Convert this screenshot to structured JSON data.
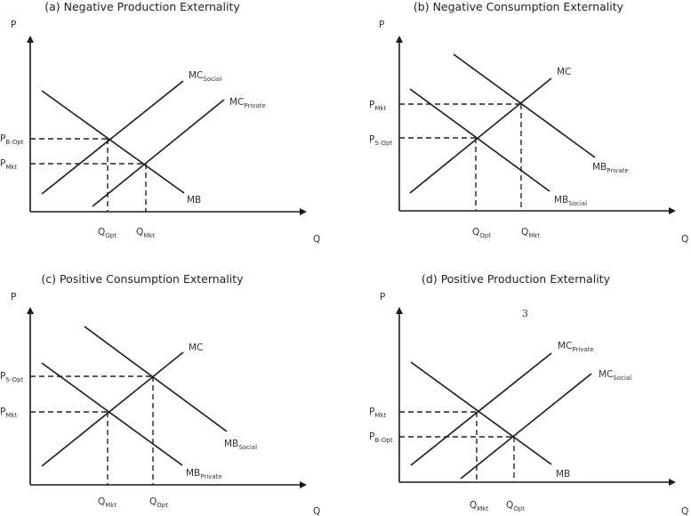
{
  "panels": [
    {
      "title": "(a) Negative Production Externality",
      "axis_p": "P",
      "axis_q": "Q",
      "curves": [
        {
          "main": "MC",
          "sub": "Social"
        },
        {
          "main": "MC",
          "sub": "Private"
        },
        {
          "main": "MB",
          "sub": ""
        }
      ],
      "price_labels": [
        {
          "main": "P",
          "sub": "B-Opt"
        },
        {
          "main": "P",
          "sub": "Mkt"
        }
      ],
      "quantity_labels": [
        {
          "main": "Q",
          "sub": "Opt"
        },
        {
          "main": "Q",
          "sub": "Mkt"
        }
      ]
    },
    {
      "title": "(b) Negative Consumption Externality",
      "axis_p": "P",
      "axis_q": "Q",
      "curves": [
        {
          "main": "MB",
          "sub": "Private"
        },
        {
          "main": "MB",
          "sub": "Social"
        },
        {
          "main": "MC",
          "sub": ""
        }
      ],
      "price_labels": [
        {
          "main": "P",
          "sub": "Mkt"
        },
        {
          "main": "P",
          "sub": "S-Opt"
        }
      ],
      "quantity_labels": [
        {
          "main": "Q",
          "sub": "Opt"
        },
        {
          "main": "Q",
          "sub": "Mkt"
        }
      ]
    },
    {
      "title": "(c) Positive Consumption Externality",
      "axis_p": "P",
      "axis_q": "Q",
      "curves": [
        {
          "main": "MB",
          "sub": "Social"
        },
        {
          "main": "MB",
          "sub": "Private"
        },
        {
          "main": "MC",
          "sub": ""
        }
      ],
      "price_labels": [
        {
          "main": "P",
          "sub": "S-Opt"
        },
        {
          "main": "P",
          "sub": "Mkt"
        }
      ],
      "quantity_labels": [
        {
          "main": "Q",
          "sub": "Mkt"
        },
        {
          "main": "Q",
          "sub": "Opt"
        }
      ]
    },
    {
      "title": "(d) Positive Production Externality",
      "axis_p": "P",
      "axis_q": "Q",
      "page_number": "3",
      "curves": [
        {
          "main": "MC",
          "sub": "Private"
        },
        {
          "main": "MC",
          "sub": "Social"
        },
        {
          "main": "MB",
          "sub": ""
        }
      ],
      "price_labels": [
        {
          "main": "P",
          "sub": "Mkt"
        },
        {
          "main": "P",
          "sub": "B-Opt"
        }
      ],
      "quantity_labels": [
        {
          "main": "Q",
          "sub": "Mkt"
        },
        {
          "main": "Q",
          "sub": "Opt"
        }
      ]
    }
  ]
}
